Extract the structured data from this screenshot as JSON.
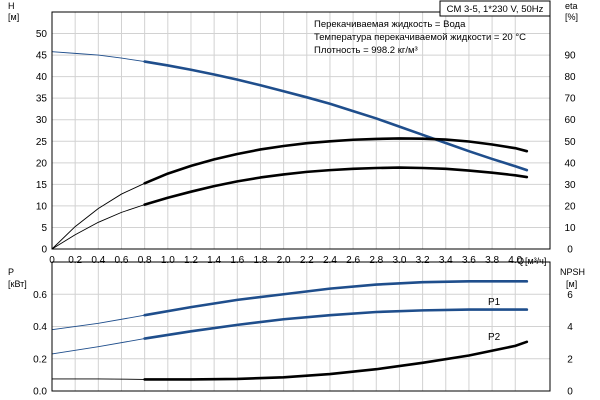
{
  "title": "CM 3-5, 1*230 V, 50Hz",
  "info_lines": [
    "Перекачиваемая жидкость = Вода",
    "Температура перекачиваемой жидкости = 20 °C",
    "Плотность = 998.2 кг/м³"
  ],
  "chart_data": [
    {
      "type": "line",
      "panel": "top",
      "grid": true,
      "x_label": "Q",
      "x_unit": "[м³/ч]",
      "x_ticks": [
        "0",
        "0.2",
        "0.4",
        "0.6",
        "0.8",
        "1.0",
        "1.2",
        "1.4",
        "1.6",
        "1.8",
        "2.0",
        "2.2",
        "2.4",
        "2.6",
        "2.8",
        "3.0",
        "3.2",
        "3.4",
        "3.6",
        "3.8",
        "4.0"
      ],
      "xlim": [
        0,
        4.3
      ],
      "y_left": {
        "label": "H",
        "unit": "[м]",
        "ticks": [
          "0",
          "5",
          "10",
          "15",
          "20",
          "25",
          "30",
          "35",
          "40",
          "45",
          "50"
        ],
        "ylim": [
          0,
          55
        ]
      },
      "y_right": {
        "label": "eta",
        "unit": "[%]",
        "ticks": [
          "0",
          "10",
          "20",
          "30",
          "40",
          "50",
          "60",
          "70",
          "80",
          "90"
        ],
        "ylim": [
          0,
          110
        ]
      },
      "series": [
        {
          "axis": "left",
          "color": "#1f4e8c",
          "x": [
            0,
            0.2,
            0.4,
            0.6,
            0.8,
            1.0,
            1.2,
            1.4,
            1.6,
            1.8,
            2.0,
            2.2,
            2.4,
            2.6,
            2.8,
            3.0,
            3.2,
            3.4,
            3.6,
            3.8,
            4.0,
            4.1
          ],
          "values": [
            45.8,
            45.4,
            45.0,
            44.3,
            43.5,
            42.6,
            41.6,
            40.5,
            39.3,
            38.0,
            36.6,
            35.2,
            33.7,
            32.0,
            30.3,
            28.4,
            26.5,
            24.6,
            22.7,
            20.9,
            19.2,
            18.3
          ],
          "operating_from": 0.8
        },
        {
          "axis": "left",
          "color": "#000000",
          "x": [
            0,
            0.2,
            0.4,
            0.6,
            0.8,
            1.0,
            1.2,
            1.4,
            1.6,
            1.8,
            2.0,
            2.2,
            2.4,
            2.6,
            2.8,
            3.0,
            3.2,
            3.4,
            3.6,
            3.8,
            4.0,
            4.1
          ],
          "values": [
            0,
            3.3,
            6.2,
            8.5,
            10.3,
            11.9,
            13.3,
            14.6,
            15.7,
            16.6,
            17.3,
            17.9,
            18.3,
            18.6,
            18.8,
            18.9,
            18.8,
            18.6,
            18.2,
            17.7,
            17.1,
            16.7
          ],
          "operating_from": 0.8
        },
        {
          "axis": "right",
          "color": "#000000",
          "x": [
            0,
            0.2,
            0.4,
            0.6,
            0.8,
            1.0,
            1.2,
            1.4,
            1.6,
            1.8,
            2.0,
            2.2,
            2.4,
            2.6,
            2.8,
            3.0,
            3.2,
            3.4,
            3.6,
            3.8,
            4.0,
            4.1
          ],
          "values": [
            0,
            10.4,
            18.8,
            25.5,
            30.5,
            35.0,
            38.6,
            41.6,
            44.1,
            46.2,
            47.8,
            49.1,
            50.0,
            50.7,
            51.1,
            51.3,
            51.2,
            50.8,
            49.9,
            48.5,
            46.8,
            45.4
          ],
          "operating_from": 0.8
        }
      ]
    },
    {
      "type": "line",
      "panel": "bottom",
      "grid": true,
      "xlim": [
        0,
        4.3
      ],
      "y_left": {
        "label": "P",
        "unit": "[кВт]",
        "ticks": [
          "0.0",
          "0.2",
          "0.4",
          "0.6"
        ],
        "ylim": [
          0,
          0.8
        ]
      },
      "y_right": {
        "label": "NPSH",
        "unit": "[м]",
        "ticks": [
          "0",
          "2",
          "4",
          "6"
        ],
        "ylim": [
          0,
          8
        ]
      },
      "series": [
        {
          "name": "P1",
          "axis": "left",
          "color": "#1f4e8c",
          "x": [
            0,
            0.4,
            0.8,
            1.2,
            1.6,
            2.0,
            2.4,
            2.8,
            3.2,
            3.6,
            4.0,
            4.1
          ],
          "values": [
            0.38,
            0.42,
            0.47,
            0.52,
            0.565,
            0.6,
            0.635,
            0.66,
            0.675,
            0.68,
            0.68,
            0.68
          ],
          "operating_from": 0.8
        },
        {
          "name": "P2",
          "axis": "left",
          "color": "#1f4e8c",
          "x": [
            0,
            0.4,
            0.8,
            1.2,
            1.6,
            2.0,
            2.4,
            2.8,
            3.2,
            3.6,
            4.0,
            4.1
          ],
          "values": [
            0.23,
            0.275,
            0.325,
            0.37,
            0.41,
            0.445,
            0.47,
            0.49,
            0.5,
            0.505,
            0.505,
            0.505
          ],
          "operating_from": 0.8
        },
        {
          "axis": "right",
          "color": "#000000",
          "x": [
            0,
            0.4,
            0.8,
            1.2,
            1.6,
            2.0,
            2.4,
            2.8,
            3.2,
            3.6,
            4.0,
            4.1
          ],
          "values": [
            0.75,
            0.75,
            0.72,
            0.72,
            0.75,
            0.85,
            1.05,
            1.35,
            1.75,
            2.2,
            2.8,
            3.05
          ],
          "operating_from": 0.8
        }
      ]
    }
  ]
}
